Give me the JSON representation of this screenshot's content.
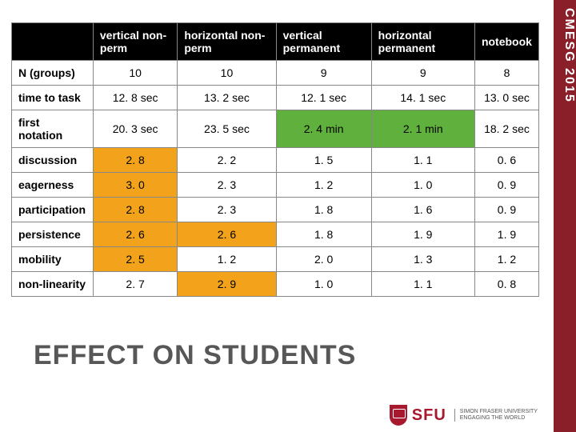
{
  "sidebar_label": "CMESG 2015",
  "table": {
    "columns": [
      "vertical non-perm",
      "horizontal non-perm",
      "vertical permanent",
      "horizontal permanent",
      "notebook"
    ],
    "rows": [
      {
        "label": "N (groups)",
        "cells": [
          "10",
          "10",
          "9",
          "9",
          "8"
        ],
        "highlights": [
          null,
          null,
          null,
          null,
          null
        ]
      },
      {
        "label": "time to task",
        "cells": [
          "12. 8 sec",
          "13. 2 sec",
          "12. 1 sec",
          "14. 1 sec",
          "13. 0 sec"
        ],
        "highlights": [
          null,
          null,
          null,
          null,
          null
        ]
      },
      {
        "label": "first notation",
        "cells": [
          "20. 3 sec",
          "23. 5 sec",
          "2. 4 min",
          "2. 1 min",
          "18. 2 sec"
        ],
        "highlights": [
          null,
          null,
          "green",
          "green",
          null
        ]
      },
      {
        "label": "discussion",
        "cells": [
          "2. 8",
          "2. 2",
          "1. 5",
          "1. 1",
          "0. 6"
        ],
        "highlights": [
          "orange",
          null,
          null,
          null,
          null
        ]
      },
      {
        "label": "eagerness",
        "cells": [
          "3. 0",
          "2. 3",
          "1. 2",
          "1. 0",
          "0. 9"
        ],
        "highlights": [
          "orange",
          null,
          null,
          null,
          null
        ]
      },
      {
        "label": "participation",
        "cells": [
          "2. 8",
          "2. 3",
          "1. 8",
          "1. 6",
          "0. 9"
        ],
        "highlights": [
          "orange",
          null,
          null,
          null,
          null
        ]
      },
      {
        "label": "persistence",
        "cells": [
          "2. 6",
          "2. 6",
          "1. 8",
          "1. 9",
          "1. 9"
        ],
        "highlights": [
          "orange",
          "orange",
          null,
          null,
          null
        ]
      },
      {
        "label": "mobility",
        "cells": [
          "2. 5",
          "1. 2",
          "2. 0",
          "1. 3",
          "1. 2"
        ],
        "highlights": [
          "orange",
          null,
          null,
          null,
          null
        ]
      },
      {
        "label": "non-linearity",
        "cells": [
          "2. 7",
          "2. 9",
          "1. 0",
          "1. 1",
          "0. 8"
        ],
        "highlights": [
          null,
          "orange",
          null,
          null,
          null
        ]
      }
    ]
  },
  "section_title": "EFFECT ON STUDENTS",
  "footer": {
    "logo_text": "SFU",
    "logo_sub1": "SIMON FRASER UNIVERSITY",
    "logo_sub2": "ENGAGING THE WORLD"
  },
  "colors": {
    "sidebar": "#8a1e29",
    "orange": "#f2a31b",
    "green": "#5fb03c",
    "sfu_red": "#a6192e"
  }
}
